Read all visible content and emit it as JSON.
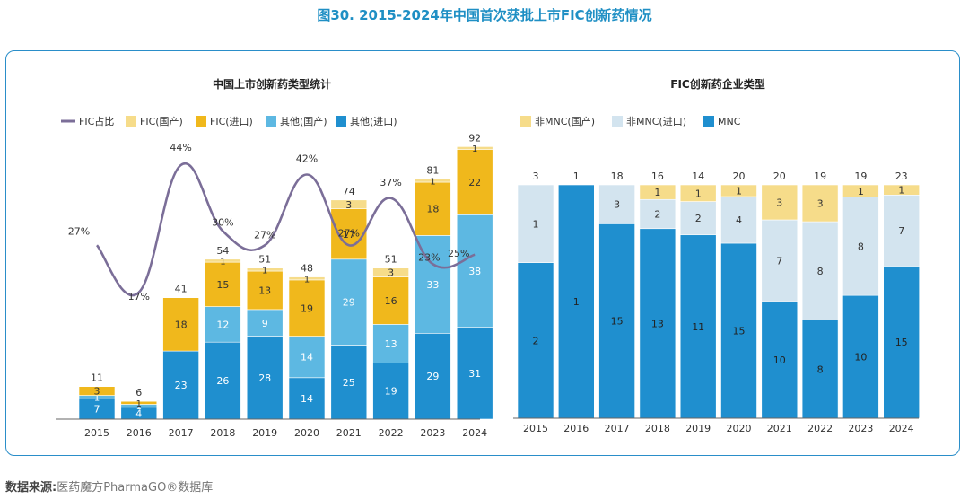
{
  "figure_title": "图30. 2015-2024年中国首次获批上市FIC创新药情况",
  "source_label": "数据来源:",
  "source_text": "医药魔方PharmaGO®数据库",
  "colors": {
    "fic_line": "#7b6e98",
    "fic_domestic": "#f6dc8a",
    "fic_import": "#f0b81c",
    "other_domestic": "#5db8e2",
    "other_import": "#1f8fcf",
    "nonmnc_domestic": "#f6dc8a",
    "nonmnc_import": "#d3e4ef",
    "mnc": "#1f8fcf"
  },
  "chart_data": [
    {
      "type": "bar",
      "title": "中国上市创新药类型统计",
      "categories": [
        "2015",
        "2016",
        "2017",
        "2018",
        "2019",
        "2020",
        "2021",
        "2022",
        "2023",
        "2024"
      ],
      "ylim": [
        0,
        100
      ],
      "series": [
        {
          "name": "其他(进口)",
          "values": [
            7,
            4,
            23,
            26,
            28,
            14,
            25,
            19,
            29,
            31
          ]
        },
        {
          "name": "其他(国产)",
          "values": [
            1,
            1,
            0,
            12,
            9,
            14,
            29,
            13,
            33,
            38
          ]
        },
        {
          "name": "FIC(进口)",
          "values": [
            3,
            1,
            18,
            15,
            13,
            19,
            17,
            16,
            18,
            22
          ]
        },
        {
          "name": "FIC(国产)",
          "values": [
            0,
            0,
            0,
            1,
            1,
            1,
            3,
            3,
            1,
            1
          ]
        }
      ],
      "totals": [
        11,
        6,
        41,
        54,
        51,
        48,
        74,
        51,
        81,
        92
      ],
      "line": {
        "name": "FIC占比",
        "values": [
          27,
          17,
          44,
          30,
          27,
          42,
          27,
          37,
          23,
          25
        ]
      },
      "line_labels": [
        "27%",
        "17%",
        "44%",
        "30%",
        "27%",
        "42%",
        "27%",
        "37%",
        "23%",
        "25%"
      ],
      "legend": [
        "FIC占比",
        "FIC(国产)",
        "FIC(进口)",
        "其他(国产)",
        "其他(进口)"
      ],
      "legend_position": "top-left"
    },
    {
      "type": "bar",
      "stacking": "percent",
      "title": "FIC创新药企业类型",
      "categories": [
        "2015",
        "2016",
        "2017",
        "2018",
        "2019",
        "2020",
        "2021",
        "2022",
        "2023",
        "2024"
      ],
      "series": [
        {
          "name": "MNC",
          "values": [
            2,
            1,
            15,
            13,
            11,
            15,
            10,
            8,
            10,
            15
          ]
        },
        {
          "name": "非MNC(进口)",
          "values": [
            1,
            0,
            3,
            2,
            2,
            4,
            7,
            8,
            8,
            7
          ]
        },
        {
          "name": "非MNC(国产)",
          "values": [
            0,
            0,
            0,
            1,
            1,
            1,
            3,
            3,
            1,
            1
          ]
        }
      ],
      "totals": [
        3,
        1,
        18,
        16,
        14,
        20,
        20,
        19,
        19,
        23
      ],
      "legend": [
        "非MNC(国产)",
        "非MNC(进口)",
        "MNC"
      ],
      "legend_position": "top-left"
    }
  ]
}
